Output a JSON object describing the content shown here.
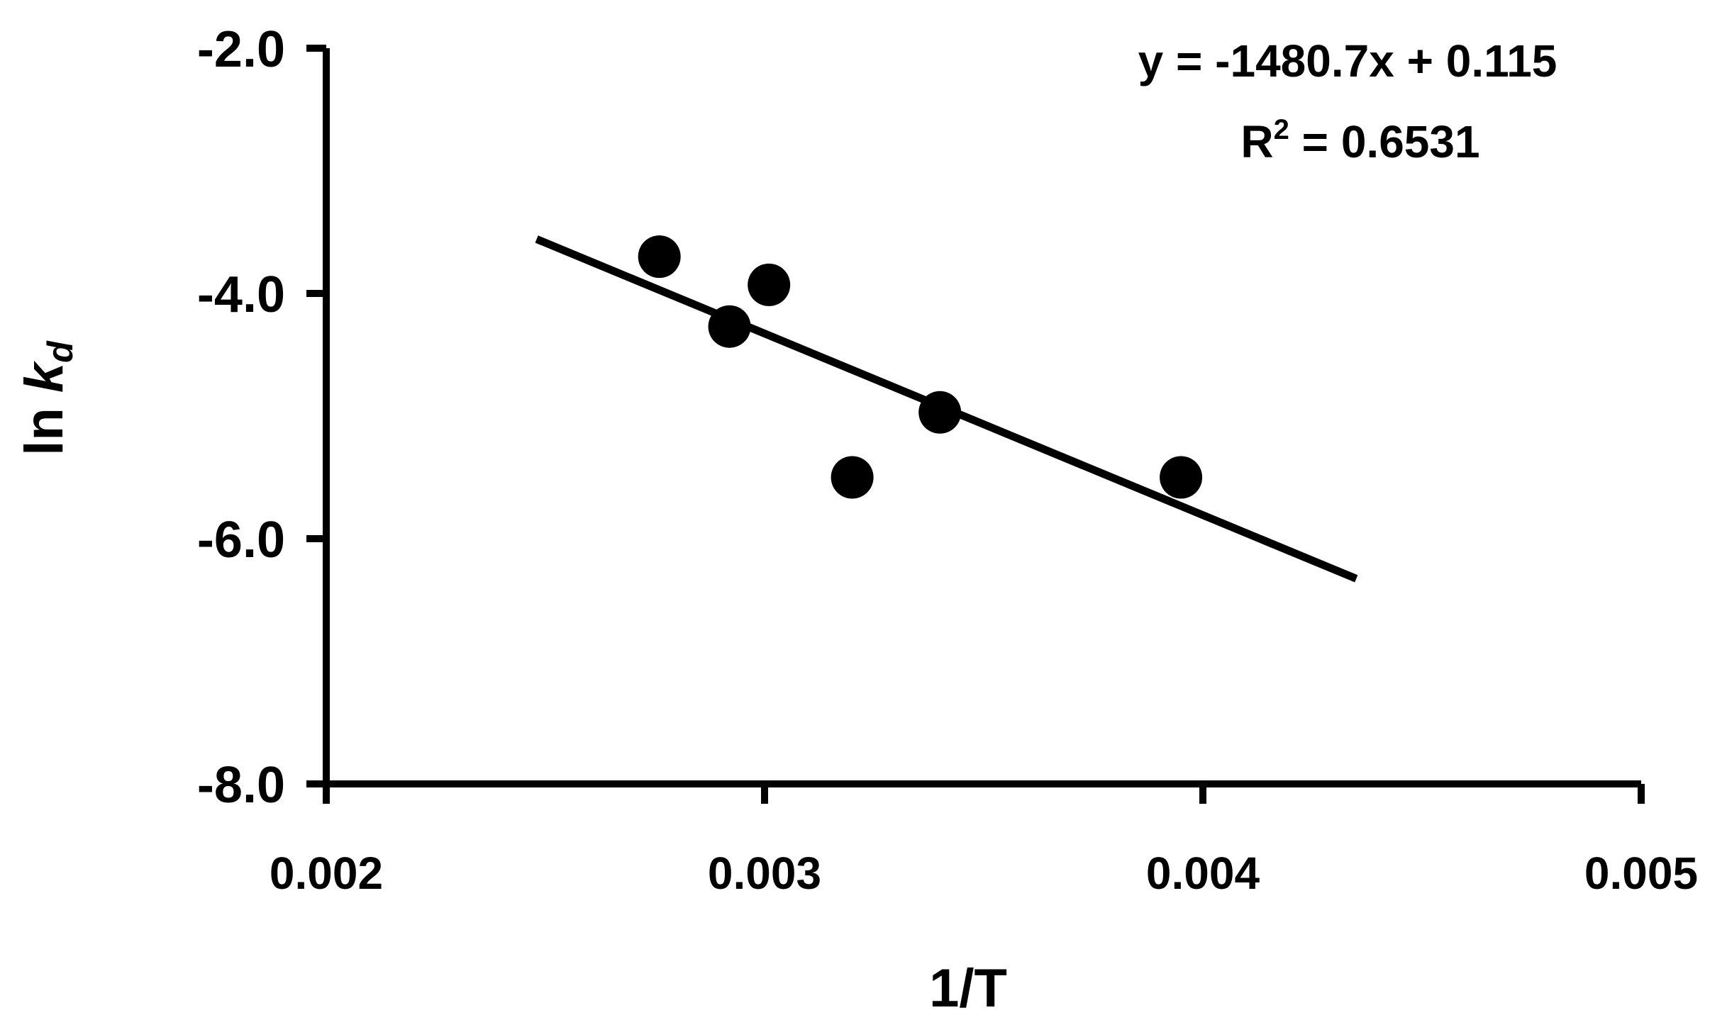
{
  "chart_data": {
    "type": "scatter",
    "xlabel": "1/T",
    "ylabel_main": "ln ",
    "ylabel_italic": "k",
    "ylabel_sub": "d",
    "xlim": [
      0.002,
      0.005
    ],
    "ylim": [
      -8.0,
      -2.0
    ],
    "xticks": [
      0.002,
      0.003,
      0.004,
      0.005
    ],
    "xtick_labels": [
      "0.002",
      "0.003",
      "0.004",
      "0.005"
    ],
    "yticks": [
      -2.0,
      -4.0,
      -6.0,
      -8.0
    ],
    "ytick_labels": [
      "-2.0",
      "-4.0",
      "-6.0",
      "-8.0"
    ],
    "points": [
      {
        "x": 0.00276,
        "y": -3.7
      },
      {
        "x": 0.00292,
        "y": -4.27
      },
      {
        "x": 0.00301,
        "y": -3.93
      },
      {
        "x": 0.0032,
        "y": -5.5
      },
      {
        "x": 0.0034,
        "y": -4.97
      },
      {
        "x": 0.00395,
        "y": -5.5
      }
    ],
    "trendline": {
      "slope": -1480.7,
      "intercept": 0.115,
      "x_range": [
        0.00248,
        0.00435
      ]
    },
    "equation_text": "y = -1480.7x + 0.115",
    "r2_prefix": "R",
    "r2_sup": "2",
    "r2_suffix": " = 0.6531",
    "grid": false,
    "legend": "none",
    "colors": {
      "marker": "#000000",
      "line": "#000000",
      "axis": "#000000"
    }
  }
}
